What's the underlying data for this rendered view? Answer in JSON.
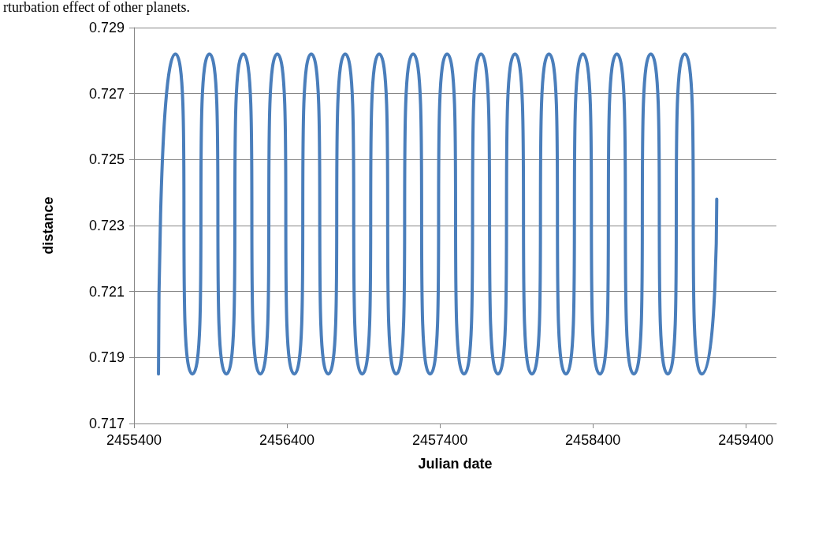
{
  "chart_data": {
    "type": "line",
    "xlabel": "Julian date",
    "ylabel": "distance",
    "annotations": [
      "rturbation effect of other planets."
    ],
    "x": [
      2455560,
      2455671,
      2455782,
      2455893,
      2456004,
      2456115,
      2456226,
      2456337,
      2456448,
      2456559,
      2456670,
      2456781,
      2456892,
      2457003,
      2457114,
      2457225,
      2457336,
      2457447,
      2457558,
      2457669,
      2457780,
      2457891,
      2458002,
      2458113,
      2458224,
      2458335,
      2458446,
      2458557,
      2458668,
      2458779,
      2458890,
      2459001,
      2459112,
      2459210
    ],
    "series": [
      {
        "color": "#4a7ebb",
        "values": [
          0.7185,
          0.7282,
          0.7185,
          0.7282,
          0.7185,
          0.7282,
          0.7185,
          0.7282,
          0.7185,
          0.7282,
          0.7185,
          0.7282,
          0.7185,
          0.7282,
          0.7185,
          0.7282,
          0.7185,
          0.7282,
          0.7185,
          0.7282,
          0.7185,
          0.7282,
          0.7185,
          0.7282,
          0.7185,
          0.7282,
          0.7185,
          0.7282,
          0.7185,
          0.7282,
          0.7185,
          0.7282,
          0.7185,
          0.7238
        ]
      }
    ],
    "xlim": [
      2455400,
      2459600
    ],
    "xticks": [
      2455400,
      2456400,
      2457400,
      2458400,
      2459400
    ],
    "ylim": [
      0.717,
      0.729
    ],
    "yticks": [
      0.717,
      0.719,
      0.721,
      0.723,
      0.725,
      0.727,
      0.729
    ],
    "grid": "y",
    "marker": "none",
    "line_style": "solid"
  }
}
